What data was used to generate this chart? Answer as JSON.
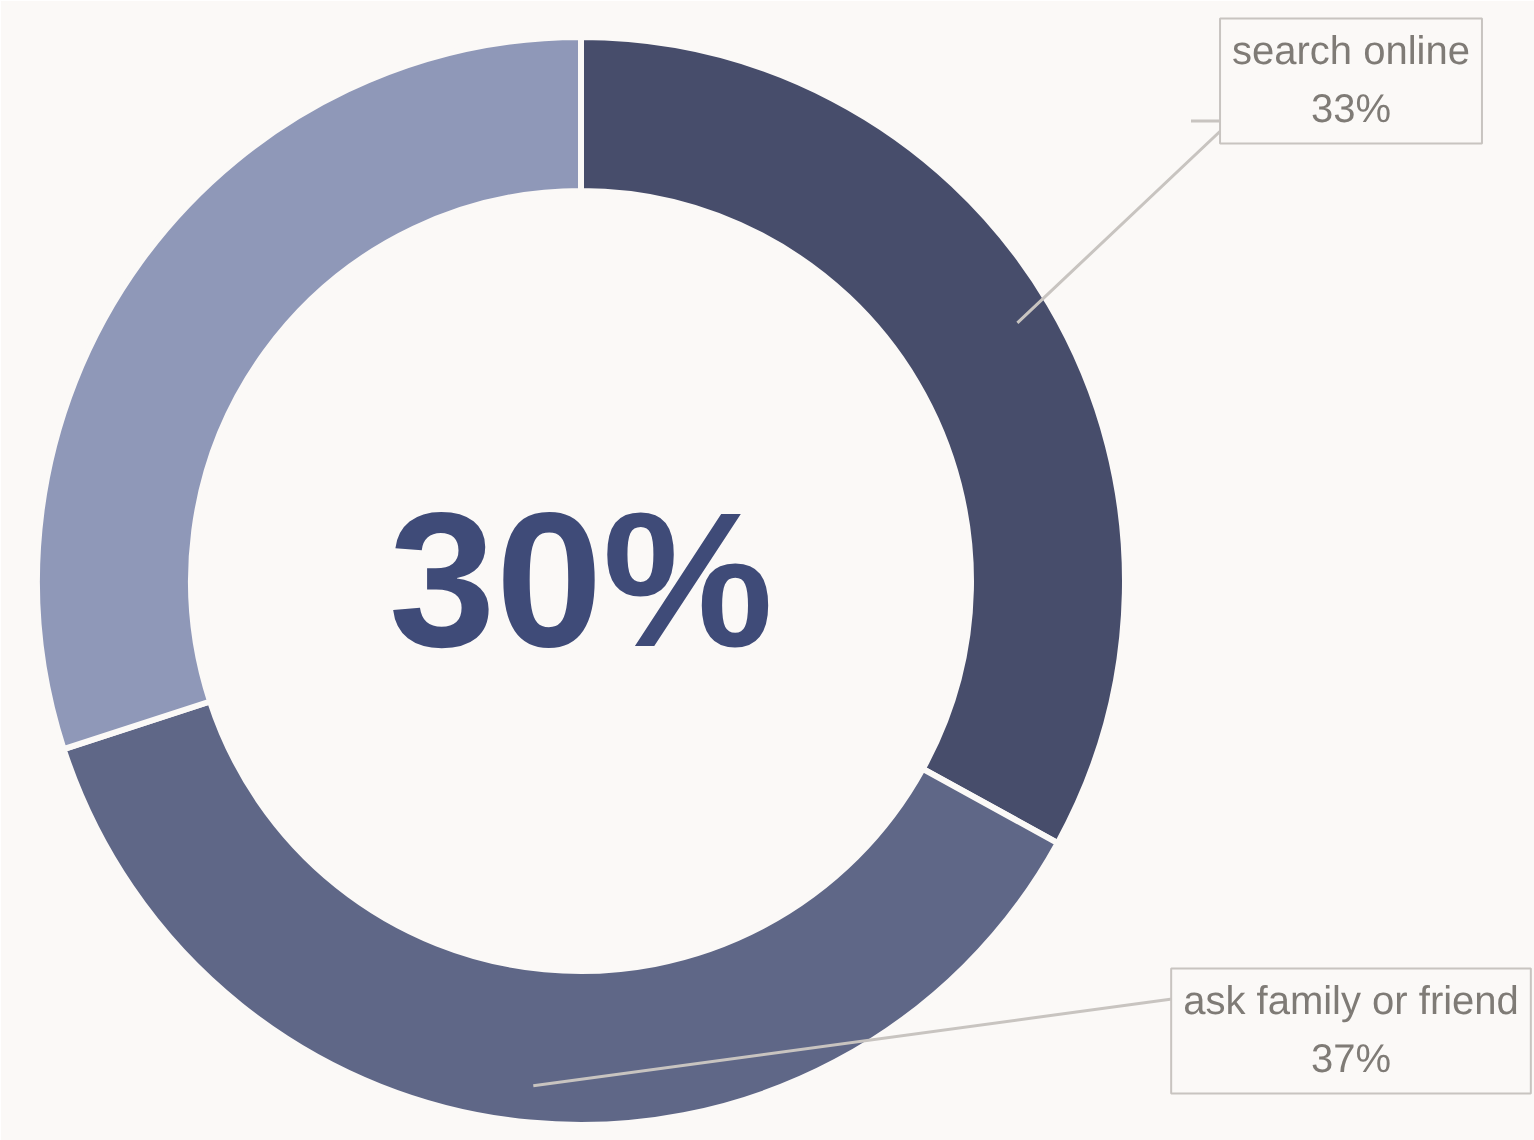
{
  "chart_data": {
    "type": "donut",
    "categories": [
      "search online",
      "ask family or friend",
      null
    ],
    "values": [
      33,
      37,
      30
    ],
    "colors": [
      "#474d6b",
      "#5f6787",
      "#8f98b8"
    ],
    "value_labels": [
      "33%",
      "37%",
      null
    ],
    "annotations": [
      "30%"
    ]
  }
}
